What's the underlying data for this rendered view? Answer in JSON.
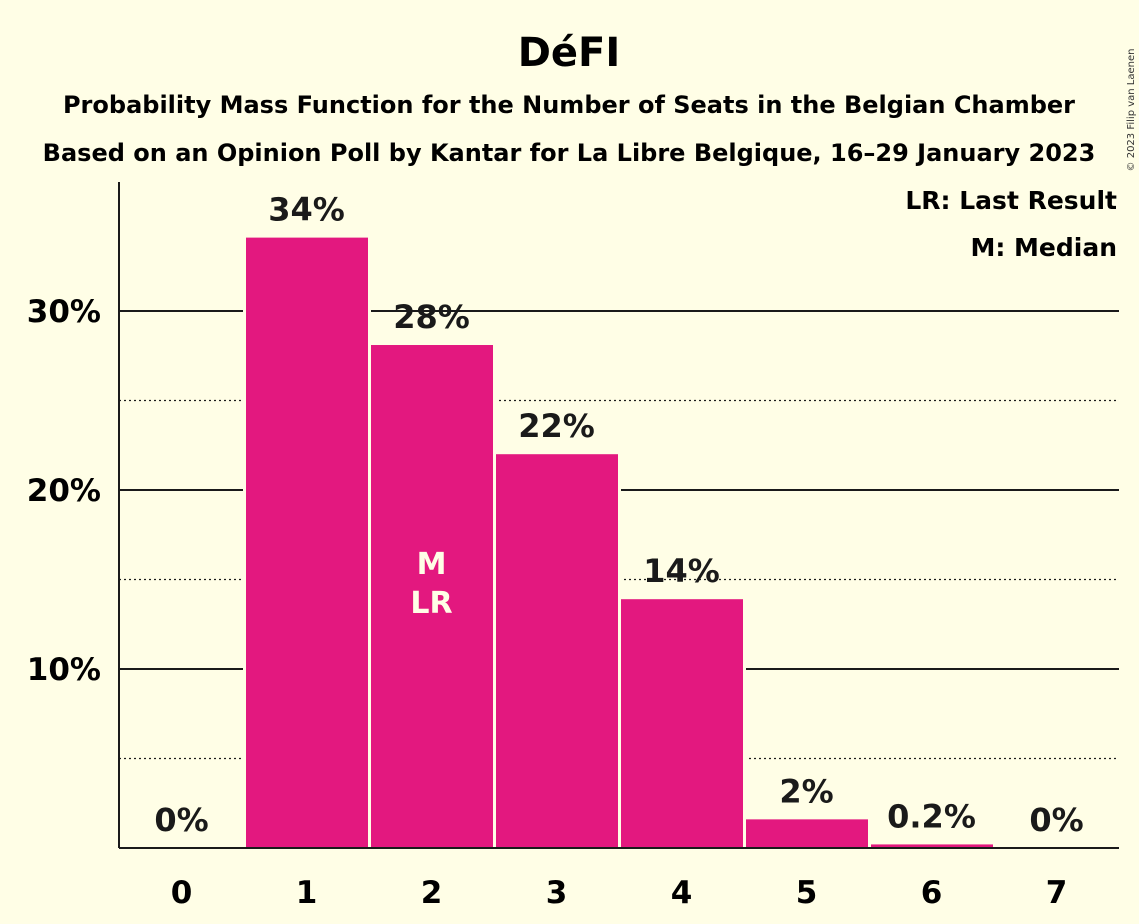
{
  "colors": {
    "background": "#FFFEE6",
    "bar": "#E3187F",
    "text": "#1a1a1a",
    "in_bar_text": "#FFFEE6"
  },
  "chart_data": {
    "type": "bar",
    "title": "DéFI",
    "subtitle_1": "Probability Mass Function for the Number of Seats in the Belgian Chamber",
    "subtitle_2": "Based on an Opinion Poll by Kantar for La Libre Belgique, 16–29 January 2023",
    "copyright": "© 2023 Filip van Laenen",
    "categories": [
      "0",
      "1",
      "2",
      "3",
      "4",
      "5",
      "6",
      "7"
    ],
    "values": [
      0,
      34.1,
      28.1,
      22.0,
      13.9,
      1.6,
      0.2,
      0
    ],
    "value_labels": [
      "0%",
      "34%",
      "28%",
      "22%",
      "14%",
      "2%",
      "0.2%",
      "0%"
    ],
    "ylim": [
      0,
      37
    ],
    "yticks": [
      10,
      20,
      30
    ],
    "ytick_labels": [
      "10%",
      "20%",
      "30%"
    ],
    "minor_gridlines": [
      5,
      15,
      25
    ],
    "grid": true,
    "median_index": 2,
    "last_result_index": 2,
    "median_marker": "M",
    "last_result_marker": "LR",
    "legend": {
      "position": "top-right",
      "items": [
        "LR: Last Result",
        "M: Median"
      ]
    }
  }
}
